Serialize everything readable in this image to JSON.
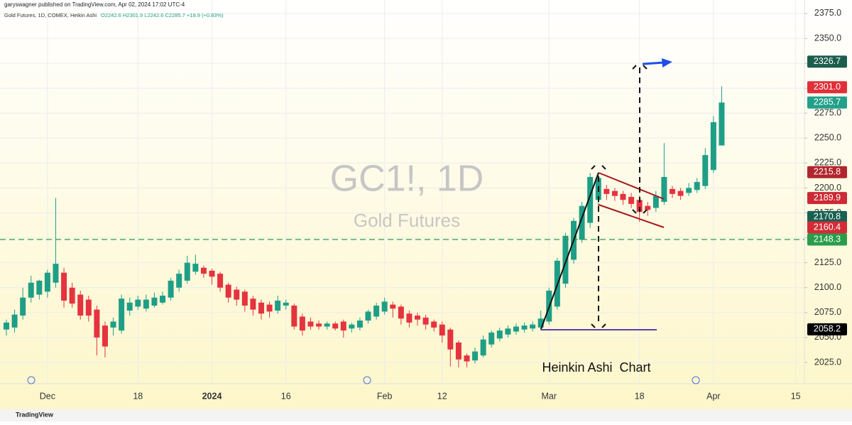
{
  "header": {
    "publisher": "garyswagner published on TradingView.com, Apr 02, 2024 17:02 UTC-4",
    "symbol_info": "Gold Futures, 1D, COMEX, Heikin Ashi",
    "ohlc_text": "O2242.6 H2301.9 L2242.6 C2285.7 +18.9 (+0.83%)"
  },
  "chart_data": {
    "type": "candlestick",
    "watermark_title": "GC1!, 1D",
    "watermark_subtitle": "Gold Futures",
    "annotation": "Heinkin Ashi  Chart",
    "categories": [
      null,
      null,
      null,
      null,
      null,
      "Dec",
      null,
      null,
      null,
      null,
      null,
      null,
      null,
      null,
      null,
      null,
      "18",
      null,
      null,
      null,
      null,
      null,
      null,
      null,
      null,
      "2024",
      null,
      null,
      null,
      null,
      null,
      null,
      null,
      null,
      "16",
      null,
      null,
      null,
      null,
      null,
      null,
      null,
      null,
      null,
      null,
      null,
      "Feb",
      null,
      null,
      null,
      null,
      null,
      null,
      "12",
      null,
      null,
      null,
      null,
      null,
      null,
      null,
      null,
      null,
      null,
      null,
      null,
      "Mar",
      null,
      null,
      null,
      null,
      null,
      null,
      null,
      null,
      null,
      null,
      "18",
      null,
      null,
      null,
      null,
      null,
      null,
      null,
      null,
      "Apr",
      null,
      null,
      null,
      null,
      null,
      null,
      null,
      null,
      null,
      "15"
    ],
    "open": [
      2058,
      2060,
      2072,
      2090,
      2093,
      2096,
      2105,
      2115,
      2100,
      2093,
      2088,
      2078,
      2062,
      2060,
      2057,
      2077,
      2081,
      2079,
      2082,
      2085,
      2090,
      2100,
      2107,
      2116,
      2120,
      2117,
      2114,
      2103,
      2098,
      2096,
      2089,
      2085,
      2083,
      2077,
      2082,
      2082,
      2071,
      2066,
      2064,
      2061,
      2064,
      2066,
      2059,
      2060,
      2067,
      2071,
      2076,
      2083,
      2081,
      2074,
      2072,
      2070,
      2066,
      2063,
      2058,
      2045,
      2032,
      2027,
      2032,
      2043,
      2049,
      2053,
      2056,
      2058,
      2059,
      2060,
      2066,
      2081,
      2104,
      2128,
      2148,
      2165,
      2188,
      2199,
      2197,
      2194,
      2191,
      2188,
      2182,
      2180,
      2186,
      2199,
      2197,
      2195,
      2198,
      2202,
      2218,
      2242.6,
      null,
      null,
      null,
      null,
      null,
      null,
      null,
      null,
      null
    ],
    "high": [
      2068,
      2078,
      2100,
      2112,
      2108,
      2118,
      2190,
      2120,
      2105,
      2097,
      2092,
      2082,
      2066,
      2070,
      2093,
      2090,
      2092,
      2093,
      2095,
      2096,
      2110,
      2118,
      2132,
      2133,
      2122,
      2119,
      2116,
      2105,
      2101,
      2098,
      2092,
      2088,
      2086,
      2092,
      2088,
      2084,
      2074,
      2070,
      2067,
      2066,
      2066,
      2068,
      2065,
      2070,
      2078,
      2085,
      2090,
      2086,
      2083,
      2077,
      2075,
      2073,
      2068,
      2066,
      2060,
      2047,
      2034,
      2040,
      2052,
      2057,
      2060,
      2062,
      2064,
      2065,
      2066,
      2077,
      2100,
      2130,
      2155,
      2170,
      2186,
      2215,
      2215,
      2203,
      2200,
      2197,
      2195,
      2192,
      2186,
      2197,
      2245,
      2202,
      2200,
      2205,
      2210,
      2240,
      2272,
      2301.9,
      null,
      null,
      null,
      null,
      null,
      null,
      null,
      null,
      null
    ],
    "low": [
      2052,
      2055,
      2068,
      2085,
      2088,
      2090,
      2100,
      2080,
      2080,
      2068,
      2066,
      2032,
      2030,
      2052,
      2054,
      2072,
      2078,
      2076,
      2080,
      2083,
      2087,
      2096,
      2104,
      2113,
      2110,
      2103,
      2096,
      2085,
      2082,
      2076,
      2072,
      2068,
      2070,
      2074,
      2078,
      2058,
      2052,
      2058,
      2058,
      2058,
      2057,
      2050,
      2055,
      2057,
      2064,
      2068,
      2073,
      2070,
      2063,
      2060,
      2062,
      2058,
      2056,
      2045,
      2021,
      2020,
      2020,
      2024,
      2030,
      2040,
      2046,
      2050,
      2053,
      2055,
      2056,
      2057,
      2063,
      2078,
      2100,
      2124,
      2145,
      2160,
      2180,
      2188,
      2187,
      2183,
      2180,
      2166,
      2172,
      2176,
      2183,
      2190,
      2188,
      2192,
      2195,
      2199,
      2215,
      2242.6,
      null,
      null,
      null,
      null,
      null,
      null,
      null,
      null,
      null
    ],
    "close": [
      2065,
      2073,
      2090,
      2105,
      2107,
      2115,
      2124,
      2087,
      2084,
      2072,
      2072,
      2050,
      2041,
      2066,
      2089,
      2085,
      2088,
      2088,
      2090,
      2092,
      2107,
      2114,
      2125,
      2124,
      2114,
      2111,
      2100,
      2090,
      2088,
      2082,
      2078,
      2074,
      2076,
      2087,
      2085,
      2061,
      2057,
      2061,
      2061,
      2064,
      2059,
      2057,
      2063,
      2067,
      2076,
      2082,
      2086,
      2079,
      2069,
      2065,
      2068,
      2063,
      2060,
      2052,
      2038,
      2028,
      2026,
      2036,
      2048,
      2055,
      2057,
      2059,
      2061,
      2062,
      2063,
      2069,
      2097,
      2127,
      2152,
      2167,
      2182,
      2211,
      2210,
      2194,
      2192,
      2188,
      2184,
      2176,
      2178,
      2192,
      2211,
      2194,
      2192,
      2200,
      2206,
      2233,
      2266,
      2285.7,
      null,
      null,
      null,
      null,
      null,
      null,
      null,
      null,
      null
    ],
    "up_color": "#1f9e87",
    "down_color": "#e5333f",
    "ylim": [
      2003.6,
      2388.5
    ],
    "yticks": [
      {
        "value": 2025,
        "label": "2025.0"
      },
      {
        "value": 2050,
        "label": "2050.0"
      },
      {
        "value": 2075,
        "label": "2075.0"
      },
      {
        "value": 2100,
        "label": "2100.0"
      },
      {
        "value": 2125,
        "label": "2125.0"
      },
      {
        "value": 2150,
        "label": "2150.0"
      },
      {
        "value": 2175,
        "label": "2175.0"
      },
      {
        "value": 2200,
        "label": "2200.0"
      },
      {
        "value": 2225,
        "label": "2225.0"
      },
      {
        "value": 2250,
        "label": "2250.0"
      },
      {
        "value": 2275,
        "label": "2275.0"
      },
      {
        "value": 2300,
        "label": "2300.0"
      },
      {
        "value": 2325,
        "label": "2325.0"
      },
      {
        "value": 2350,
        "label": "2350.0"
      },
      {
        "value": 2375,
        "label": "2375.0"
      }
    ],
    "grid": true,
    "price_labels": [
      {
        "value": 2326.7,
        "label": "2326.7",
        "color": "#1b5e4c"
      },
      {
        "value": 2301,
        "label": "2301.0",
        "color": "#e0303a"
      },
      {
        "value": 2285.7,
        "label": "2285.7",
        "color": "#22a08a"
      },
      {
        "value": 2215.8,
        "label": "2215.8",
        "color": "#b1262e"
      },
      {
        "value": 2189.9,
        "label": "2189.9",
        "color": "#cc2a35"
      },
      {
        "value": 2170.8,
        "label": "2170.8",
        "color": "#176152"
      },
      {
        "value": 2160.4,
        "label": "2160.4",
        "color": "#d42c36"
      },
      {
        "value": 2148.3,
        "label": "2148.3",
        "color": "#2a9d4a",
        "style": "dashed"
      },
      {
        "value": 2058.2,
        "label": "2058.2",
        "color": "#000000"
      }
    ]
  },
  "footer": {
    "brand": "TradingView"
  }
}
